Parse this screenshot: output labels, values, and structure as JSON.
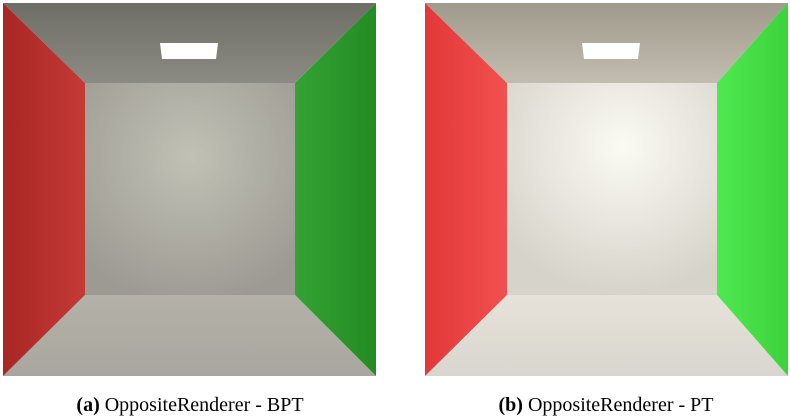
{
  "figures": [
    {
      "label": "(a)",
      "caption": "OppositeRenderer - BPT"
    },
    {
      "label": "(b)",
      "caption": "OppositeRenderer - PT"
    }
  ]
}
